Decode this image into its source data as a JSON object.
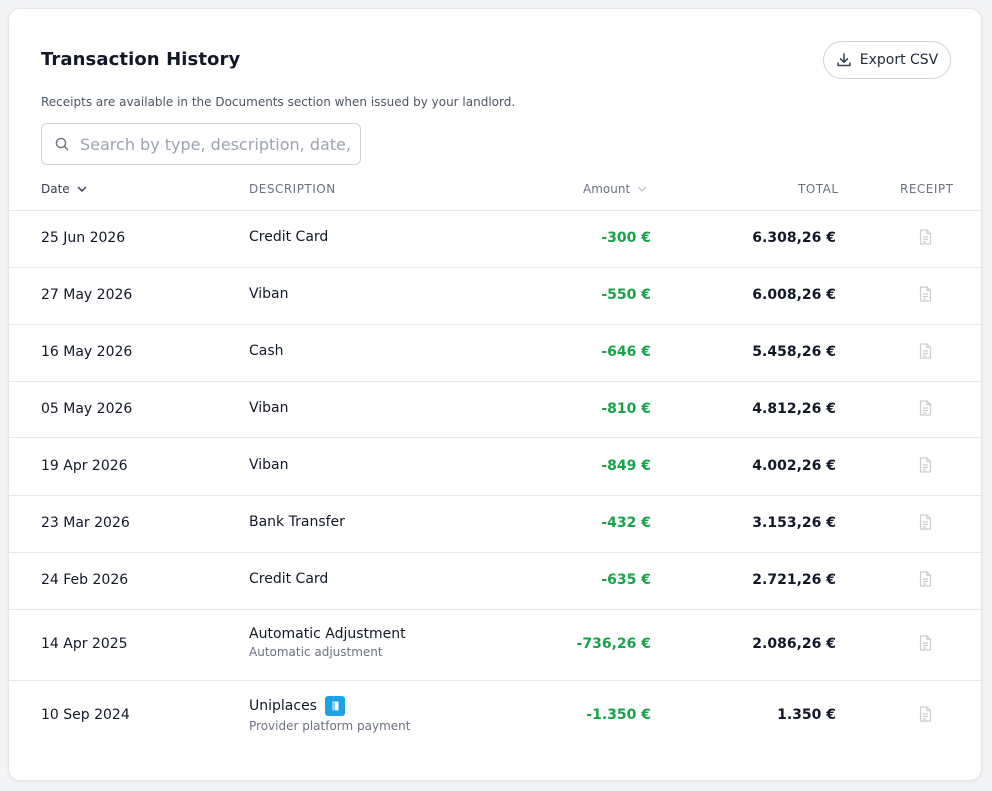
{
  "header": {
    "title": "Transaction History",
    "subtitle": "Receipts are available in the Documents section when issued by your landlord.",
    "export_label": "Export CSV"
  },
  "search": {
    "placeholder": "Search by type, description, date, amount...",
    "value": ""
  },
  "columns": {
    "date": "Date",
    "description": "DESCRIPTION",
    "amount": "Amount",
    "total": "TOTAL",
    "receipt": "RECEIPT"
  },
  "rows": [
    {
      "date": "25 Jun 2026",
      "description": "Credit Card",
      "sub": "",
      "amount": "-300 €",
      "total": "6.308,26 €"
    },
    {
      "date": "27 May 2026",
      "description": "Viban",
      "sub": "",
      "amount": "-550 €",
      "total": "6.008,26 €"
    },
    {
      "date": "16 May 2026",
      "description": "Cash",
      "sub": "",
      "amount": "-646 €",
      "total": "5.458,26 €"
    },
    {
      "date": "05 May 2026",
      "description": "Viban",
      "sub": "",
      "amount": "-810 €",
      "total": "4.812,26 €"
    },
    {
      "date": "19 Apr 2026",
      "description": "Viban",
      "sub": "",
      "amount": "-849 €",
      "total": "4.002,26 €"
    },
    {
      "date": "23 Mar 2026",
      "description": "Bank Transfer",
      "sub": "",
      "amount": "-432 €",
      "total": "3.153,26 €"
    },
    {
      "date": "24 Feb 2026",
      "description": "Credit Card",
      "sub": "",
      "amount": "-635 €",
      "total": "2.721,26 €"
    },
    {
      "date": "14 Apr 2025",
      "description": "Automatic Adjustment",
      "sub": "Automatic adjustment",
      "amount": "-736,26 €",
      "total": "2.086,26 €"
    },
    {
      "date": "10 Sep 2024",
      "description": "Uniplaces",
      "sub": "Provider platform payment",
      "amount": "-1.350 €",
      "total": "1.350 €"
    }
  ],
  "colors": {
    "amount_negative": "#16a34a",
    "provider_badge": "#1ba2e6"
  },
  "icons": {
    "export": "download-icon",
    "search": "search-icon",
    "sort": "chevron-down-icon",
    "receipt": "document-icon",
    "provider": "uniplaces-logo-icon"
  }
}
